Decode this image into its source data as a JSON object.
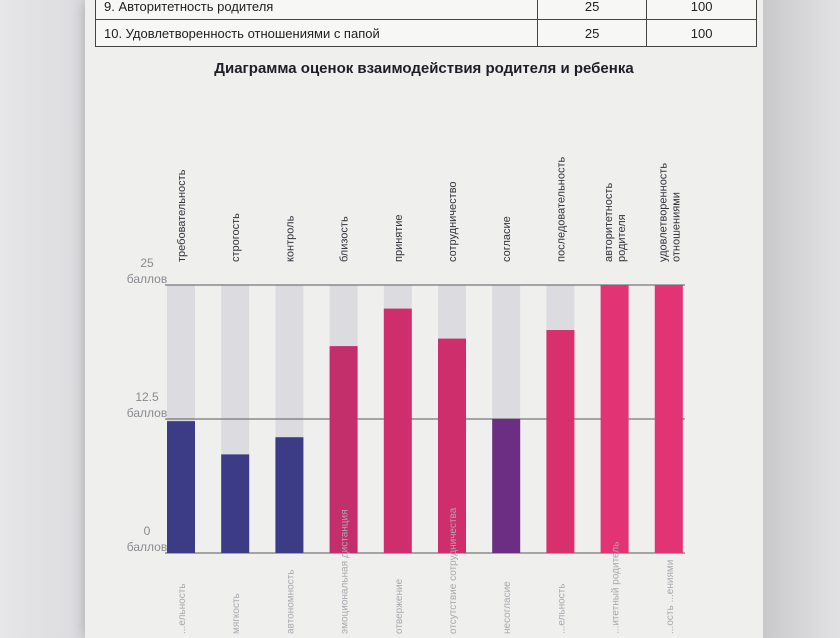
{
  "table": {
    "rows": [
      {
        "name": "9. Авторитетность родителя",
        "value": "25",
        "max": "100"
      },
      {
        "name": "10. Удовлетворенность отношениями с папой",
        "value": "25",
        "max": "100"
      }
    ]
  },
  "chart_data": {
    "type": "bar",
    "title": "Диаграмма оценок взаимодействия родителя и ребенка",
    "ylim": [
      0,
      25
    ],
    "y_ticks": [
      {
        "value": 25,
        "lines": [
          "25",
          "баллов"
        ]
      },
      {
        "value": 12.5,
        "lines": [
          "12.5",
          "баллов"
        ]
      },
      {
        "value": 0,
        "lines": [
          "0",
          "баллов"
        ]
      }
    ],
    "categories": [
      {
        "lines": [
          "требовательность"
        ],
        "value": 12.3,
        "color": "#3c3b86"
      },
      {
        "lines": [
          "строгость"
        ],
        "value": 9.2,
        "color": "#3c3b86"
      },
      {
        "lines": [
          "контроль"
        ],
        "value": 10.8,
        "color": "#3c3b86"
      },
      {
        "lines": [
          "близость"
        ],
        "value": 19.3,
        "color": "#c22f6b"
      },
      {
        "lines": [
          "принятие"
        ],
        "value": 22.8,
        "color": "#cf2e6c"
      },
      {
        "lines": [
          "сотрудничество"
        ],
        "value": 20.0,
        "color": "#cf2e6c"
      },
      {
        "lines": [
          "согласие"
        ],
        "value": 12.5,
        "color": "#6b2e82"
      },
      {
        "lines": [
          "последовательность"
        ],
        "value": 20.8,
        "color": "#d82f6d"
      },
      {
        "lines": [
          "авторитетность",
          "родителя"
        ],
        "value": 25,
        "color": "#e23474"
      },
      {
        "lines": [
          "удовлетворенность",
          "отношениями"
        ],
        "value": 25,
        "color": "#e23474"
      }
    ],
    "bottom_labels": [
      "...ельность",
      "мягкость",
      "автономность",
      "эмоциональная дистанция",
      "отвержение",
      "отсутствие сотрудничества",
      "несогласие",
      "...ельность",
      "...итетный родитель",
      "...ость ...ениями"
    ]
  }
}
